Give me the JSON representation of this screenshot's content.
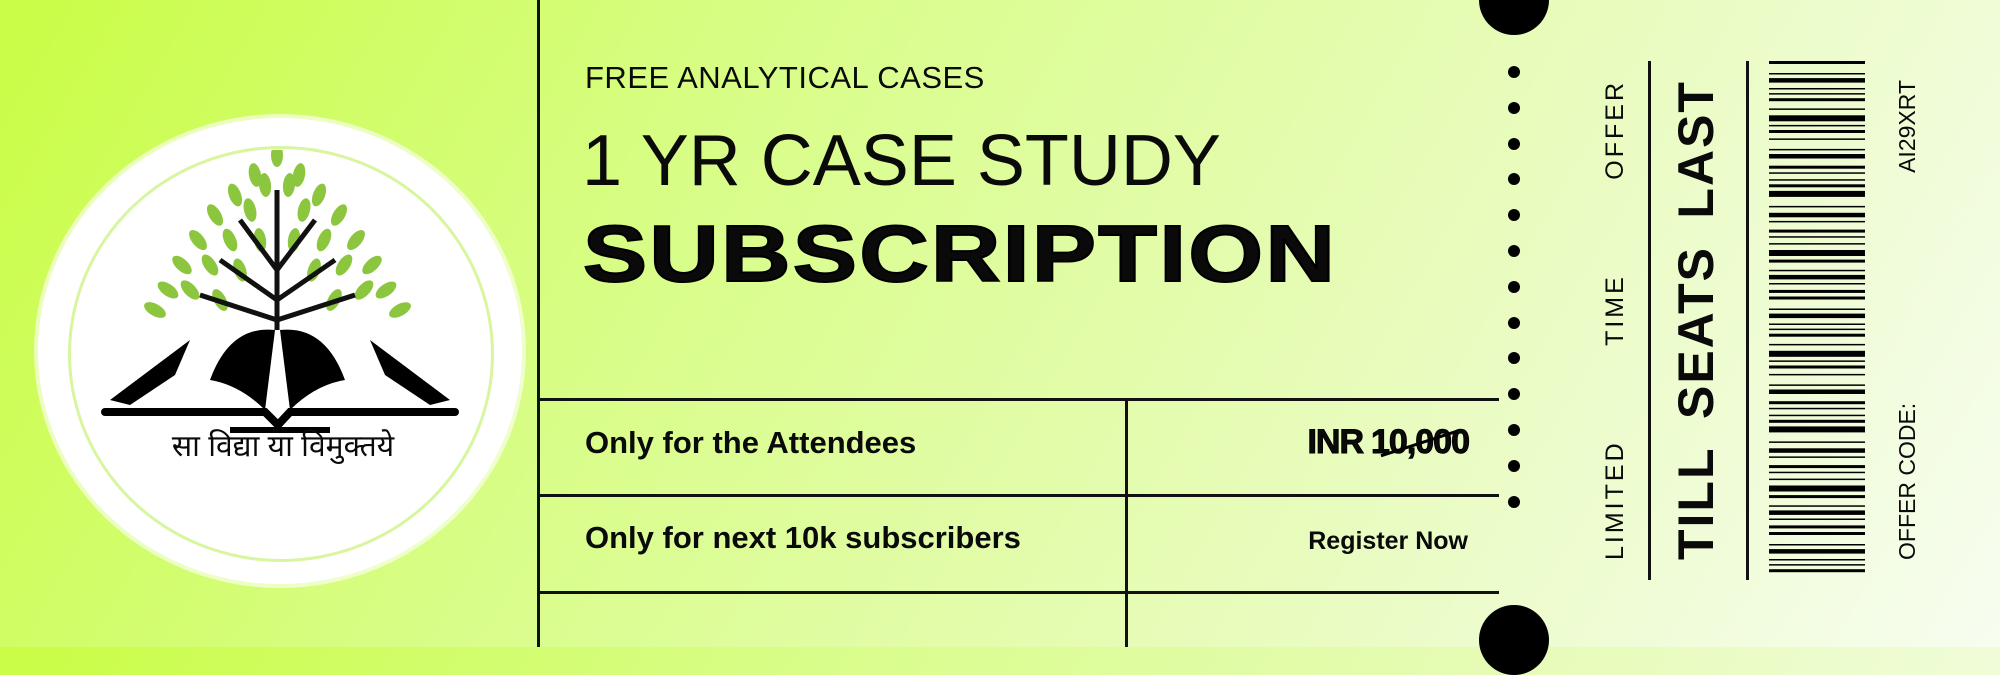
{
  "logo": {
    "motto": "सा विद्या या विमुक्तये",
    "leaf_color": "#8cc63f"
  },
  "header": {
    "eyebrow": "FREE ANALYTICAL CASES",
    "title_line1": "1 YR CASE STUDY",
    "title_line2": "SUBSCRIPTION"
  },
  "rows": [
    {
      "label": "Only for the Attendees",
      "currency": "INR",
      "price_struck": "10,000"
    },
    {
      "label": "Only for next 10k subscribers",
      "action": "Register Now"
    }
  ],
  "stub": {
    "offer_words": [
      "LIMITED",
      "TIME",
      "OFFER"
    ],
    "seat_words": [
      "TILL",
      "SEATS",
      "LAST"
    ],
    "offer_code_label": "OFFER CODE:",
    "offer_code": "AI29XRT"
  },
  "colors": {
    "background_start": "#c9fd45",
    "background_end": "#f7fdf0",
    "ink": "#0a0a0a"
  }
}
